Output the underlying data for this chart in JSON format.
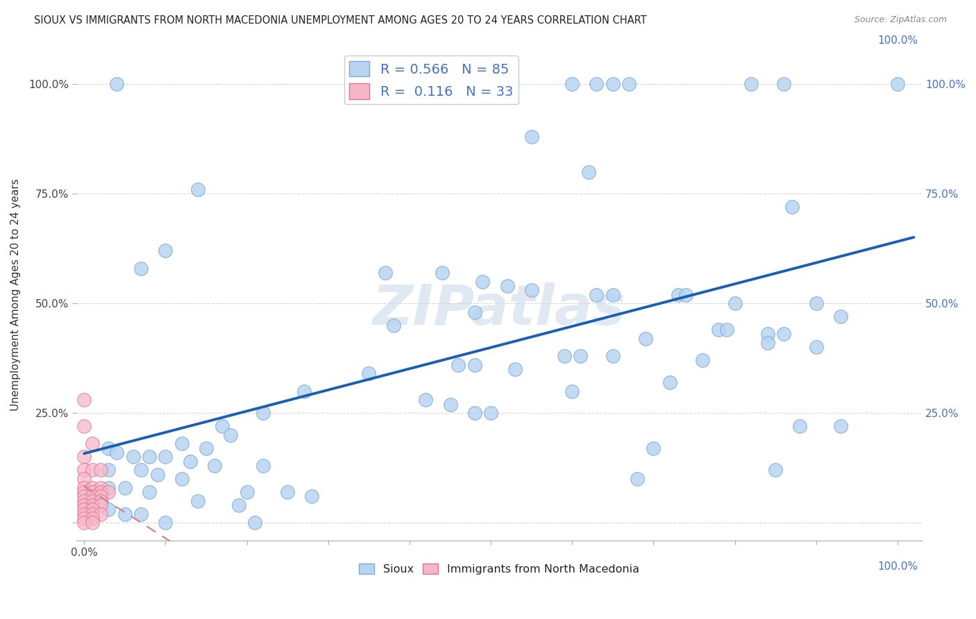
{
  "title": "SIOUX VS IMMIGRANTS FROM NORTH MACEDONIA UNEMPLOYMENT AMONG AGES 20 TO 24 YEARS CORRELATION CHART",
  "source": "Source: ZipAtlas.com",
  "ylabel": "Unemployment Among Ages 20 to 24 years",
  "sioux_R": 0.566,
  "sioux_N": 85,
  "immig_R": 0.116,
  "immig_N": 33,
  "sioux_color": "#b8d4f0",
  "sioux_edge": "#7aaad8",
  "immig_color": "#f5b8c8",
  "immig_edge": "#e07090",
  "trendline_sioux": "#1a5fb4",
  "trendline_immig": "#d08090",
  "background": "#ffffff",
  "watermark": "ZIPatlas",
  "sioux_points": [
    [
      0.04,
      1.0
    ],
    [
      0.6,
      1.0
    ],
    [
      0.63,
      1.0
    ],
    [
      0.65,
      1.0
    ],
    [
      0.67,
      1.0
    ],
    [
      0.82,
      1.0
    ],
    [
      0.86,
      1.0
    ],
    [
      1.0,
      1.0
    ],
    [
      0.55,
      0.88
    ],
    [
      0.62,
      0.8
    ],
    [
      0.14,
      0.76
    ],
    [
      0.87,
      0.72
    ],
    [
      0.1,
      0.62
    ],
    [
      0.07,
      0.58
    ],
    [
      0.37,
      0.57
    ],
    [
      0.44,
      0.57
    ],
    [
      0.49,
      0.55
    ],
    [
      0.52,
      0.54
    ],
    [
      0.55,
      0.53
    ],
    [
      0.63,
      0.52
    ],
    [
      0.65,
      0.52
    ],
    [
      0.73,
      0.52
    ],
    [
      0.74,
      0.52
    ],
    [
      0.8,
      0.5
    ],
    [
      0.9,
      0.5
    ],
    [
      0.48,
      0.48
    ],
    [
      0.93,
      0.47
    ],
    [
      0.38,
      0.45
    ],
    [
      0.78,
      0.44
    ],
    [
      0.79,
      0.44
    ],
    [
      0.84,
      0.43
    ],
    [
      0.86,
      0.43
    ],
    [
      0.69,
      0.42
    ],
    [
      0.84,
      0.41
    ],
    [
      0.9,
      0.4
    ],
    [
      0.59,
      0.38
    ],
    [
      0.61,
      0.38
    ],
    [
      0.65,
      0.38
    ],
    [
      0.76,
      0.37
    ],
    [
      0.46,
      0.36
    ],
    [
      0.48,
      0.36
    ],
    [
      0.53,
      0.35
    ],
    [
      0.35,
      0.34
    ],
    [
      0.72,
      0.32
    ],
    [
      0.27,
      0.3
    ],
    [
      0.6,
      0.3
    ],
    [
      0.42,
      0.28
    ],
    [
      0.45,
      0.27
    ],
    [
      0.48,
      0.25
    ],
    [
      0.5,
      0.25
    ],
    [
      0.22,
      0.25
    ],
    [
      0.88,
      0.22
    ],
    [
      0.93,
      0.22
    ],
    [
      0.17,
      0.22
    ],
    [
      0.18,
      0.2
    ],
    [
      0.12,
      0.18
    ],
    [
      0.15,
      0.17
    ],
    [
      0.7,
      0.17
    ],
    [
      0.03,
      0.17
    ],
    [
      0.04,
      0.16
    ],
    [
      0.06,
      0.15
    ],
    [
      0.08,
      0.15
    ],
    [
      0.1,
      0.15
    ],
    [
      0.13,
      0.14
    ],
    [
      0.16,
      0.13
    ],
    [
      0.22,
      0.13
    ],
    [
      0.85,
      0.12
    ],
    [
      0.03,
      0.12
    ],
    [
      0.07,
      0.12
    ],
    [
      0.09,
      0.11
    ],
    [
      0.12,
      0.1
    ],
    [
      0.68,
      0.1
    ],
    [
      0.03,
      0.08
    ],
    [
      0.05,
      0.08
    ],
    [
      0.08,
      0.07
    ],
    [
      0.2,
      0.07
    ],
    [
      0.25,
      0.07
    ],
    [
      0.28,
      0.06
    ],
    [
      0.14,
      0.05
    ],
    [
      0.19,
      0.04
    ],
    [
      0.03,
      0.03
    ],
    [
      0.05,
      0.02
    ],
    [
      0.07,
      0.02
    ],
    [
      0.1,
      0.0
    ],
    [
      0.21,
      0.0
    ]
  ],
  "immig_points": [
    [
      0.0,
      0.28
    ],
    [
      0.0,
      0.22
    ],
    [
      0.01,
      0.18
    ],
    [
      0.0,
      0.15
    ],
    [
      0.0,
      0.12
    ],
    [
      0.01,
      0.12
    ],
    [
      0.02,
      0.12
    ],
    [
      0.0,
      0.1
    ],
    [
      0.0,
      0.08
    ],
    [
      0.01,
      0.08
    ],
    [
      0.02,
      0.08
    ],
    [
      0.0,
      0.07
    ],
    [
      0.01,
      0.07
    ],
    [
      0.02,
      0.07
    ],
    [
      0.03,
      0.07
    ],
    [
      0.0,
      0.06
    ],
    [
      0.01,
      0.06
    ],
    [
      0.02,
      0.06
    ],
    [
      0.0,
      0.05
    ],
    [
      0.01,
      0.05
    ],
    [
      0.02,
      0.05
    ],
    [
      0.0,
      0.04
    ],
    [
      0.01,
      0.04
    ],
    [
      0.02,
      0.04
    ],
    [
      0.0,
      0.03
    ],
    [
      0.01,
      0.03
    ],
    [
      0.0,
      0.02
    ],
    [
      0.01,
      0.02
    ],
    [
      0.02,
      0.02
    ],
    [
      0.0,
      0.01
    ],
    [
      0.01,
      0.01
    ],
    [
      0.0,
      0.0
    ],
    [
      0.01,
      0.0
    ]
  ],
  "xlim": [
    -0.01,
    1.03
  ],
  "ylim": [
    -0.04,
    1.08
  ],
  "trendline_x_start": 0.0,
  "trendline_x_end": 1.02
}
